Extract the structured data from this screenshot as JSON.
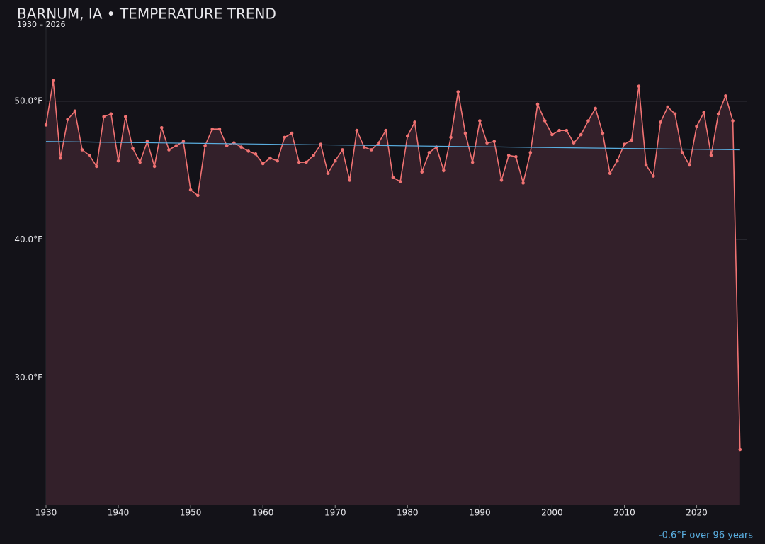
{
  "chart_data": {
    "type": "line",
    "title": "BARNUM, IA • TEMPERATURE TREND",
    "subtitle": "1930 – 2026",
    "x": [
      1930,
      1931,
      1932,
      1933,
      1934,
      1935,
      1936,
      1937,
      1938,
      1939,
      1940,
      1941,
      1942,
      1943,
      1944,
      1945,
      1946,
      1947,
      1948,
      1949,
      1950,
      1951,
      1952,
      1953,
      1954,
      1955,
      1956,
      1957,
      1958,
      1959,
      1960,
      1961,
      1962,
      1963,
      1964,
      1965,
      1966,
      1967,
      1968,
      1969,
      1970,
      1971,
      1972,
      1973,
      1974,
      1975,
      1976,
      1977,
      1978,
      1979,
      1980,
      1981,
      1982,
      1983,
      1984,
      1985,
      1986,
      1987,
      1988,
      1989,
      1990,
      1991,
      1992,
      1993,
      1994,
      1995,
      1996,
      1997,
      1998,
      1999,
      2000,
      2001,
      2002,
      2003,
      2004,
      2005,
      2006,
      2007,
      2008,
      2009,
      2010,
      2011,
      2012,
      2013,
      2014,
      2015,
      2016,
      2017,
      2018,
      2019,
      2020,
      2021,
      2022,
      2023,
      2024,
      2025,
      2026
    ],
    "series": [
      {
        "color": "#f07272",
        "fill": "#33202a",
        "values": [
          48.3,
          51.5,
          45.9,
          48.7,
          49.3,
          46.5,
          46.1,
          45.3,
          48.9,
          49.1,
          45.7,
          48.9,
          46.6,
          45.6,
          47.1,
          45.3,
          48.1,
          46.5,
          46.8,
          47.1,
          43.6,
          43.2,
          46.8,
          48.0,
          48.0,
          46.8,
          47.0,
          46.7,
          46.4,
          46.2,
          45.5,
          45.9,
          45.7,
          47.4,
          47.7,
          45.6,
          45.6,
          46.1,
          46.9,
          44.8,
          45.7,
          46.5,
          44.3,
          47.9,
          46.7,
          46.5,
          47.0,
          47.9,
          44.5,
          44.2,
          47.5,
          48.5,
          44.9,
          46.3,
          46.7,
          45.0,
          47.4,
          50.7,
          47.7,
          45.6,
          48.6,
          47.0,
          47.1,
          44.3,
          46.1,
          46.0,
          44.1,
          46.3,
          49.8,
          48.6,
          47.6,
          47.9,
          47.9,
          47.0,
          47.6,
          48.6,
          49.5,
          47.7,
          44.8,
          45.7,
          46.9,
          47.2,
          51.1,
          45.4,
          44.6,
          48.5,
          49.6,
          49.1,
          46.3,
          45.4,
          48.2,
          49.2,
          46.1,
          49.1,
          50.4,
          48.6,
          24.8
        ]
      }
    ],
    "trend": {
      "color": "#5aaee0",
      "x": [
        1930,
        2026
      ],
      "values": [
        47.1,
        46.5
      ]
    },
    "annotation": "-0.6°F over 96 years",
    "xlim": [
      1930,
      2027
    ],
    "xticks": [
      1930,
      1940,
      1950,
      1960,
      1970,
      1980,
      1990,
      2000,
      2010,
      2020
    ],
    "ylim": [
      20.8,
      55.8
    ],
    "yticks": [
      {
        "value": 30,
        "label": "30.0°F"
      },
      {
        "value": 40,
        "label": "40.0°F"
      },
      {
        "value": 50,
        "label": "50.0°F"
      }
    ],
    "grid": true
  }
}
